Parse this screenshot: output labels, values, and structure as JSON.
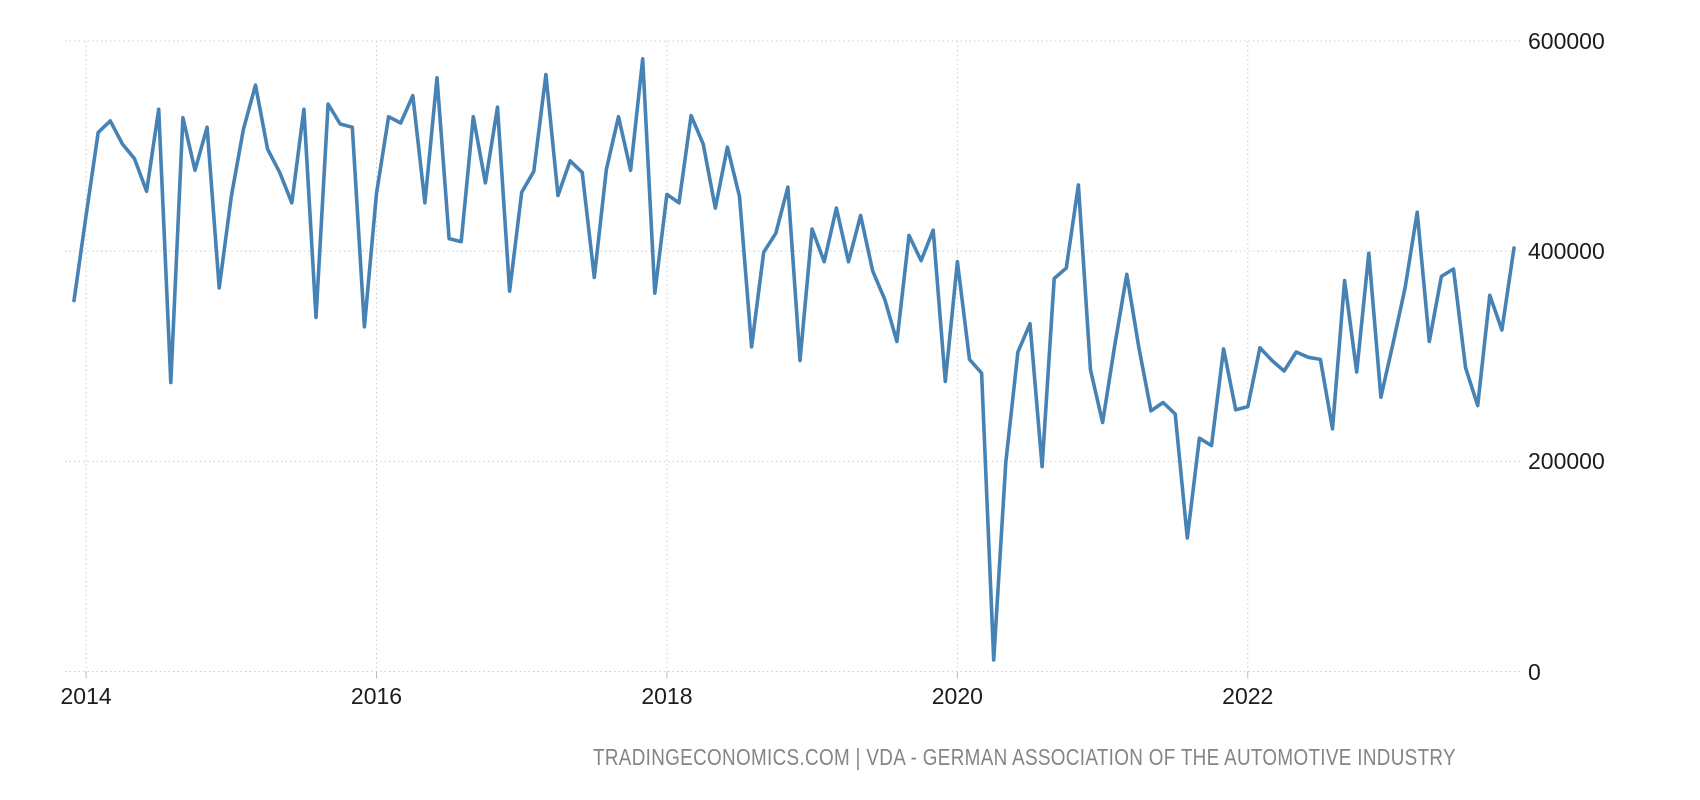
{
  "attribution": {
    "text": "TRADINGECONOMICS.COM | VDA - GERMAN ASSOCIATION OF THE AUTOMOTIVE INDUSTRY"
  },
  "colors": {
    "line": "#4682b4",
    "grid": "#cccccc",
    "tick_mark": "#bbbbbb",
    "axis_text": "#1c1c1c",
    "attribution_text": "#848484"
  },
  "chart_data": {
    "type": "line",
    "frequency": "monthly",
    "legend": [],
    "grid": "dotted",
    "ylim": [
      0,
      600000
    ],
    "y_ticks": [
      {
        "label": "0",
        "value": 0
      },
      {
        "label": "200000",
        "value": 200000
      },
      {
        "label": "400000",
        "value": 400000
      },
      {
        "label": "600000",
        "value": 600000
      }
    ],
    "x_ticks": [
      {
        "label": "2014",
        "index": 1
      },
      {
        "label": "2016",
        "index": 25
      },
      {
        "label": "2018",
        "index": 49
      },
      {
        "label": "2020",
        "index": 73
      },
      {
        "label": "2022",
        "index": 97
      }
    ],
    "dates": [
      "2013-12",
      "2014-01",
      "2014-02",
      "2014-03",
      "2014-04",
      "2014-05",
      "2014-06",
      "2014-07",
      "2014-08",
      "2014-09",
      "2014-10",
      "2014-11",
      "2014-12",
      "2015-01",
      "2015-02",
      "2015-03",
      "2015-04",
      "2015-05",
      "2015-06",
      "2015-07",
      "2015-08",
      "2015-09",
      "2015-10",
      "2015-11",
      "2015-12",
      "2016-01",
      "2016-02",
      "2016-03",
      "2016-04",
      "2016-05",
      "2016-06",
      "2016-07",
      "2016-08",
      "2016-09",
      "2016-10",
      "2016-11",
      "2016-12",
      "2017-01",
      "2017-02",
      "2017-03",
      "2017-04",
      "2017-05",
      "2017-06",
      "2017-07",
      "2017-08",
      "2017-09",
      "2017-10",
      "2017-11",
      "2017-12",
      "2018-01",
      "2018-02",
      "2018-03",
      "2018-04",
      "2018-05",
      "2018-06",
      "2018-07",
      "2018-08",
      "2018-09",
      "2018-10",
      "2018-11",
      "2018-12",
      "2019-01",
      "2019-02",
      "2019-03",
      "2019-04",
      "2019-05",
      "2019-06",
      "2019-07",
      "2019-08",
      "2019-09",
      "2019-10",
      "2019-11",
      "2019-12",
      "2020-01",
      "2020-02",
      "2020-03",
      "2020-04",
      "2020-05",
      "2020-06",
      "2020-07",
      "2020-08",
      "2020-09",
      "2020-10",
      "2020-11",
      "2020-12",
      "2021-01",
      "2021-02",
      "2021-03",
      "2021-04",
      "2021-05",
      "2021-06",
      "2021-07",
      "2021-08",
      "2021-09",
      "2021-10",
      "2021-11",
      "2021-12",
      "2022-01",
      "2022-02",
      "2022-03",
      "2022-04",
      "2022-05",
      "2022-06",
      "2022-07",
      "2022-08",
      "2022-09",
      "2022-10",
      "2022-11",
      "2022-12",
      "2023-01",
      "2023-02",
      "2023-03",
      "2023-04",
      "2023-05",
      "2023-06",
      "2023-07",
      "2023-08",
      "2023-09",
      "2023-10",
      "2023-11"
    ],
    "values": [
      353000,
      434000,
      513000,
      524000,
      502000,
      488000,
      457000,
      535000,
      275000,
      527000,
      477000,
      518000,
      365000,
      452000,
      516000,
      558000,
      497000,
      475000,
      446000,
      535000,
      337000,
      540000,
      521000,
      518000,
      328000,
      455000,
      528000,
      522000,
      548000,
      446000,
      565000,
      412000,
      409000,
      528000,
      465000,
      537000,
      362000,
      456000,
      476000,
      568000,
      453000,
      486000,
      475000,
      375000,
      478000,
      528000,
      477000,
      583000,
      360000,
      454000,
      446000,
      529000,
      502000,
      441000,
      499000,
      452000,
      309000,
      399000,
      417000,
      461000,
      296000,
      421000,
      390000,
      441000,
      390000,
      434000,
      381000,
      354000,
      314000,
      415000,
      391000,
      420000,
      276000,
      390000,
      297000,
      284000,
      11000,
      199000,
      304000,
      331000,
      195000,
      374000,
      384000,
      463000,
      287000,
      237000,
      310000,
      378000,
      308000,
      248000,
      256000,
      245000,
      127000,
      222000,
      215000,
      307000,
      249000,
      252000,
      308000,
      296000,
      286000,
      304000,
      299000,
      297000,
      231000,
      372000,
      285000,
      398000,
      261000,
      312000,
      365000,
      437000,
      314000,
      376000,
      383000,
      289000,
      253000,
      358000,
      325000,
      403000
    ]
  }
}
